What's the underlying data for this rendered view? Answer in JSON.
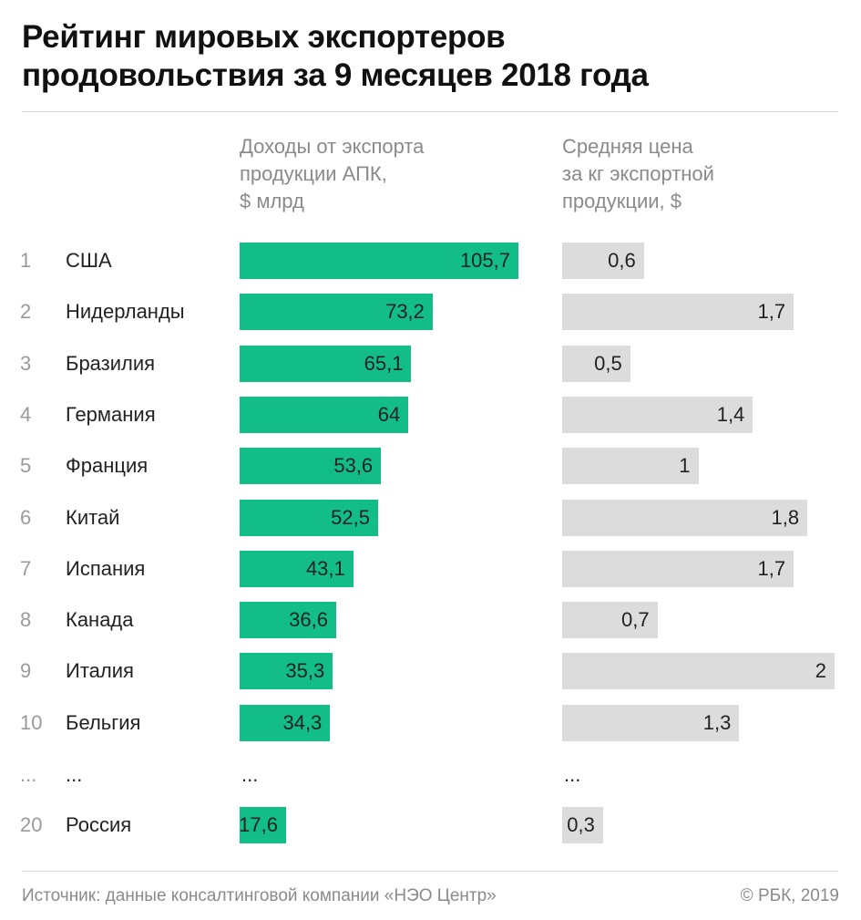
{
  "title": "Рейтинг мировых экспортеров\nпродовольствия за 9 месяцев 2018 года",
  "chart_data": {
    "type": "bar",
    "orientation": "horizontal",
    "title": "Рейтинг мировых экспортеров продовольствия за 9 месяцев 2018 года",
    "ranks": [
      "1",
      "2",
      "3",
      "4",
      "5",
      "6",
      "7",
      "8",
      "9",
      "10",
      "20"
    ],
    "categories": [
      "США",
      "Нидерланды",
      "Бразилия",
      "Германия",
      "Франция",
      "Китай",
      "Испания",
      "Канада",
      "Италия",
      "Бельгия",
      "Россия"
    ],
    "ellipsis": "...",
    "series": [
      {
        "name": "Доходы от экспорта\nпродукции АПК,\n$ млрд",
        "color": "#12bd88",
        "values": [
          105.7,
          73.2,
          65.1,
          64,
          53.6,
          52.5,
          43.1,
          36.6,
          35.3,
          34.3,
          17.6
        ],
        "labels": [
          "105,7",
          "73,2",
          "65,1",
          "64",
          "53,6",
          "52,5",
          "43,1",
          "36,6",
          "35,3",
          "34,3",
          "17,6"
        ]
      },
      {
        "name": "Средняя цена\nза кг экспортной\nпродукции, $",
        "color": "#dcdcdc",
        "values": [
          0.6,
          1.7,
          0.5,
          1.4,
          1,
          1.8,
          1.7,
          0.7,
          2,
          1.3,
          0.3
        ],
        "labels": [
          "0,6",
          "1,7",
          "0,5",
          "1,4",
          "1",
          "1,8",
          "1,7",
          "0,7",
          "2",
          "1,3",
          "0,3"
        ]
      }
    ],
    "grid": false
  },
  "footer": {
    "source": "Источник: данные консалтинговой компании «НЭО Центр»",
    "copyright": "© РБК, 2019"
  }
}
